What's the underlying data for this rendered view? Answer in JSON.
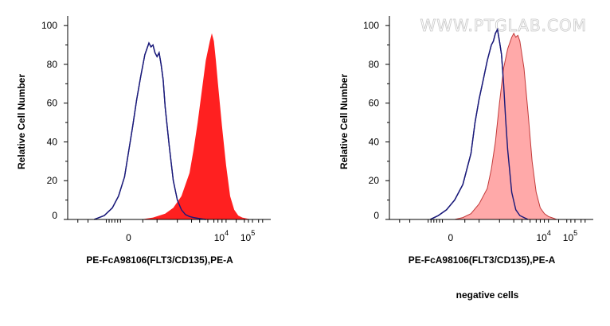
{
  "chart_data": [
    {
      "type": "area",
      "title": "",
      "xlabel": "PE-FcA98106(FLT3/CD135),PE-A",
      "ylabel": "Relative Cell Number",
      "xscale": "biexponential",
      "ylim": [
        0,
        105
      ],
      "y_ticks": [
        "0",
        "20",
        "40",
        "60",
        "80",
        "100"
      ],
      "x_ticks": [
        {
          "base": "0",
          "exp": ""
        },
        {
          "base": "10",
          "exp": "4"
        },
        {
          "base": "10",
          "exp": "5"
        }
      ],
      "series": [
        {
          "style": "outline",
          "color": "#1a1a7a",
          "x": [
            -0.85,
            -0.6,
            -0.4,
            -0.25,
            -0.1,
            0.0,
            0.1,
            0.2,
            0.3,
            0.4,
            0.5,
            0.55,
            0.6,
            0.65,
            0.7,
            0.75,
            0.8,
            0.85,
            0.9,
            1.0,
            1.1,
            1.2,
            1.3,
            1.4,
            1.5,
            1.6,
            1.7,
            1.8,
            1.9
          ],
          "y": [
            0,
            2,
            6,
            12,
            22,
            35,
            48,
            62,
            74,
            85,
            91,
            89,
            90,
            86,
            84,
            86,
            80,
            72,
            58,
            38,
            20,
            10,
            5,
            2.5,
            1.5,
            1,
            0.6,
            0.3,
            0
          ]
        },
        {
          "style": "filled",
          "color": "#ff2020",
          "x": [
            0.3,
            0.6,
            0.9,
            1.1,
            1.3,
            1.5,
            1.6,
            1.7,
            1.8,
            1.9,
            2.0,
            2.05,
            2.1,
            2.15,
            2.2,
            2.3,
            2.4,
            2.5,
            2.6,
            2.7,
            2.8,
            2.9,
            3.0
          ],
          "y": [
            0,
            1,
            3,
            6,
            12,
            24,
            36,
            50,
            66,
            82,
            92,
            96,
            92,
            82,
            70,
            48,
            28,
            12,
            5,
            2,
            1,
            0.5,
            0
          ]
        }
      ]
    },
    {
      "type": "area",
      "title": "",
      "xlabel": "PE-FcA98106(FLT3/CD135),PE-A",
      "ylabel": "Relative Cell Number",
      "xscale": "biexponential",
      "ylim": [
        0,
        105
      ],
      "y_ticks": [
        "0",
        "20",
        "40",
        "60",
        "80",
        "100"
      ],
      "x_ticks": [
        {
          "base": "0",
          "exp": ""
        },
        {
          "base": "10",
          "exp": "4"
        },
        {
          "base": "10",
          "exp": "5"
        }
      ],
      "caption": "negative cells",
      "watermark": "WWW.PTGLAB.COM",
      "series": [
        {
          "style": "outline",
          "color": "#1a1a7a",
          "x": [
            -0.5,
            -0.3,
            -0.1,
            0.1,
            0.3,
            0.5,
            0.6,
            0.7,
            0.8,
            0.9,
            1.0,
            1.05,
            1.1,
            1.15,
            1.2,
            1.25,
            1.3,
            1.35,
            1.4,
            1.5,
            1.6,
            1.7,
            1.8,
            1.9
          ],
          "y": [
            0,
            2,
            5,
            10,
            18,
            34,
            50,
            62,
            72,
            82,
            90,
            92,
            96,
            98,
            92,
            85,
            70,
            52,
            36,
            14,
            5,
            2,
            1,
            0
          ]
        },
        {
          "style": "filled-light",
          "color": "#ff9a9a",
          "stroke": "#c23a3a",
          "x": [
            0.1,
            0.3,
            0.5,
            0.7,
            0.9,
            1.0,
            1.1,
            1.2,
            1.3,
            1.4,
            1.5,
            1.55,
            1.6,
            1.65,
            1.7,
            1.8,
            1.9,
            2.0,
            2.1,
            2.2,
            2.3,
            2.4,
            2.5,
            2.6
          ],
          "y": [
            0,
            1,
            3,
            8,
            16,
            26,
            40,
            60,
            78,
            88,
            94,
            96,
            94,
            95,
            92,
            78,
            55,
            30,
            14,
            6,
            3,
            1.5,
            0.8,
            0
          ]
        }
      ]
    }
  ]
}
